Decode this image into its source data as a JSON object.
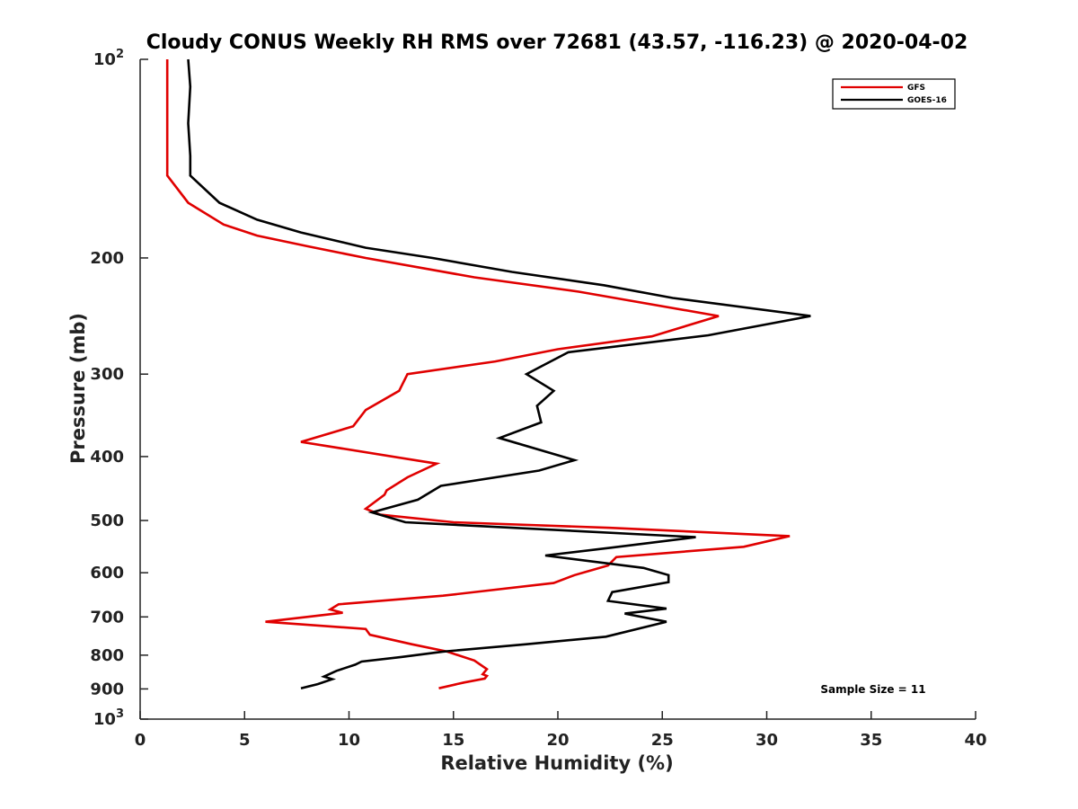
{
  "chart_data": {
    "type": "line",
    "title": "Cloudy CONUS Weekly RH RMS over 72681 (43.57, -116.23) @ 2020-04-02",
    "xlabel": "Relative Humidity (%)",
    "ylabel": "Pressure (mb)",
    "xlim": [
      0,
      40
    ],
    "ylim": [
      100,
      1000
    ],
    "y_scale": "log",
    "y_inverted": true,
    "x_ticks": [
      "0",
      "5",
      "10",
      "15",
      "20",
      "25",
      "30",
      "35",
      "40"
    ],
    "y_ticks": [
      {
        "value": 100,
        "base": "10",
        "exp": "2"
      },
      {
        "value": 200,
        "label": "200"
      },
      {
        "value": 300,
        "label": "300"
      },
      {
        "value": 400,
        "label": "400"
      },
      {
        "value": 500,
        "label": "500"
      },
      {
        "value": 600,
        "label": "600"
      },
      {
        "value": 700,
        "label": "700"
      },
      {
        "value": 800,
        "label": "800"
      },
      {
        "value": 900,
        "label": "900"
      },
      {
        "value": 1000,
        "base": "10",
        "exp": "3"
      }
    ],
    "grid": false,
    "legend_position": "top-right",
    "annotation": "Sample Size = 11",
    "series": [
      {
        "name": "GFS",
        "color": "#e00000",
        "points": [
          [
            1.3,
            100
          ],
          [
            1.3,
            125
          ],
          [
            1.3,
            150
          ],
          [
            2.3,
            165
          ],
          [
            4.0,
            178
          ],
          [
            5.6,
            185
          ],
          [
            8.0,
            192
          ],
          [
            10.8,
            200
          ],
          [
            16.0,
            214
          ],
          [
            21.0,
            225
          ],
          [
            27.7,
            245
          ],
          [
            24.5,
            263
          ],
          [
            20.0,
            275
          ],
          [
            17.0,
            287
          ],
          [
            12.8,
            300
          ],
          [
            12.4,
            318
          ],
          [
            10.8,
            340
          ],
          [
            10.2,
            360
          ],
          [
            7.7,
            380
          ],
          [
            14.2,
            410
          ],
          [
            12.8,
            430
          ],
          [
            11.8,
            450
          ],
          [
            11.7,
            457
          ],
          [
            10.8,
            480
          ],
          [
            11.5,
            490
          ],
          [
            15.0,
            503
          ],
          [
            22.5,
            513
          ],
          [
            31.1,
            528
          ],
          [
            28.9,
            548
          ],
          [
            22.8,
            568
          ],
          [
            22.4,
            585
          ],
          [
            20.8,
            605
          ],
          [
            19.8,
            622
          ],
          [
            14.5,
            650
          ],
          [
            9.5,
            670
          ],
          [
            9.1,
            682
          ],
          [
            9.7,
            690
          ],
          [
            6.0,
            712
          ],
          [
            10.8,
            730
          ],
          [
            11.0,
            745
          ],
          [
            13.0,
            770
          ],
          [
            14.7,
            790
          ],
          [
            16.0,
            815
          ],
          [
            16.6,
            840
          ],
          [
            16.4,
            855
          ],
          [
            16.6,
            860
          ],
          [
            16.5,
            868
          ],
          [
            15.5,
            880
          ],
          [
            14.3,
            898
          ]
        ]
      },
      {
        "name": "GOES-16",
        "color": "#000000",
        "points": [
          [
            2.3,
            100
          ],
          [
            2.4,
            110
          ],
          [
            2.3,
            125
          ],
          [
            2.4,
            140
          ],
          [
            2.4,
            150
          ],
          [
            3.8,
            165
          ],
          [
            5.6,
            175
          ],
          [
            7.7,
            183
          ],
          [
            10.8,
            193
          ],
          [
            14.0,
            200
          ],
          [
            17.8,
            210
          ],
          [
            22.2,
            220
          ],
          [
            25.5,
            230
          ],
          [
            32.1,
            245
          ],
          [
            27.2,
            262
          ],
          [
            20.5,
            278
          ],
          [
            19.2,
            292
          ],
          [
            18.5,
            300
          ],
          [
            19.8,
            318
          ],
          [
            19.0,
            335
          ],
          [
            19.2,
            355
          ],
          [
            17.2,
            375
          ],
          [
            20.8,
            405
          ],
          [
            19.1,
            420
          ],
          [
            14.4,
            443
          ],
          [
            13.3,
            465
          ],
          [
            11.1,
            486
          ],
          [
            12.7,
            503
          ],
          [
            26.6,
            530
          ],
          [
            22.5,
            550
          ],
          [
            19.4,
            565
          ],
          [
            24.1,
            590
          ],
          [
            25.3,
            605
          ],
          [
            25.3,
            620
          ],
          [
            22.6,
            642
          ],
          [
            22.4,
            662
          ],
          [
            25.2,
            680
          ],
          [
            23.2,
            692
          ],
          [
            25.2,
            712
          ],
          [
            22.3,
            750
          ],
          [
            18.5,
            770
          ],
          [
            14.5,
            790
          ],
          [
            12.5,
            805
          ],
          [
            10.6,
            818
          ],
          [
            10.3,
            827
          ],
          [
            9.4,
            845
          ],
          [
            8.8,
            862
          ],
          [
            9.2,
            870
          ],
          [
            8.5,
            885
          ],
          [
            7.7,
            898
          ]
        ]
      }
    ]
  }
}
